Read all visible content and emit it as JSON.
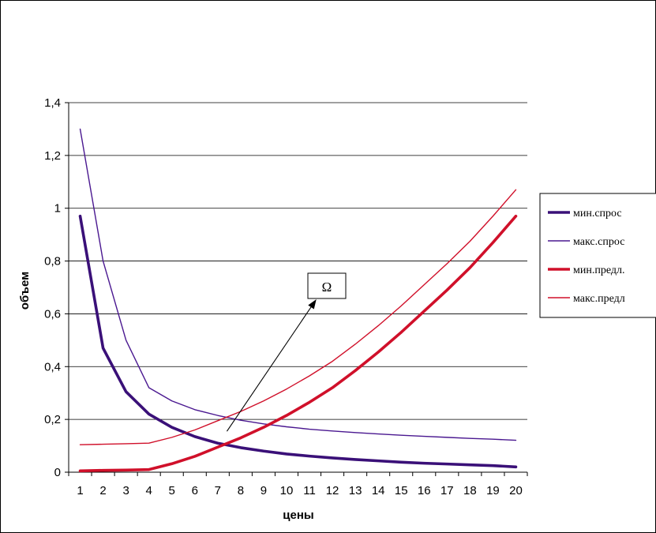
{
  "chart_data": {
    "type": "line",
    "xlabel": "цены",
    "ylabel": "объем",
    "x": [
      1,
      2,
      3,
      4,
      5,
      6,
      7,
      8,
      9,
      10,
      11,
      12,
      13,
      14,
      15,
      16,
      17,
      18,
      19,
      20
    ],
    "ylim": [
      0,
      1.4
    ],
    "yticks": [
      0,
      0.2,
      0.4,
      0.6,
      0.8,
      1,
      1.2,
      1.4
    ],
    "ytick_labels": [
      "0",
      "0,2",
      "0,4",
      "0,6",
      "0,8",
      "1",
      "1,2",
      "1,4"
    ],
    "grid": "horizontal",
    "legend_position": "right",
    "series": [
      {
        "name": "мин.спрос",
        "color": "#3a1078",
        "values": [
          0.97,
          0.47,
          0.305,
          0.22,
          0.17,
          0.135,
          0.11,
          0.093,
          0.08,
          0.069,
          0.061,
          0.054,
          0.048,
          0.043,
          0.038,
          0.034,
          0.031,
          0.028,
          0.025,
          0.02
        ]
      },
      {
        "name": "макс.спрос",
        "color": "#4a1890",
        "values": [
          1.3,
          0.8,
          0.5,
          0.32,
          0.27,
          0.237,
          0.215,
          0.197,
          0.183,
          0.172,
          0.163,
          0.156,
          0.15,
          0.145,
          0.14,
          0.136,
          0.132,
          0.128,
          0.125,
          0.121
        ]
      },
      {
        "name": "мин.предл.",
        "color": "#d0102a",
        "values": [
          0.005,
          0.007,
          0.008,
          0.01,
          0.032,
          0.06,
          0.095,
          0.13,
          0.17,
          0.215,
          0.265,
          0.32,
          0.385,
          0.455,
          0.53,
          0.61,
          0.69,
          0.775,
          0.87,
          0.97
        ]
      },
      {
        "name": "макс.предл",
        "color": "#d0102a",
        "values": [
          0.104,
          0.106,
          0.108,
          0.11,
          0.132,
          0.16,
          0.195,
          0.23,
          0.27,
          0.315,
          0.365,
          0.42,
          0.485,
          0.555,
          0.63,
          0.71,
          0.79,
          0.875,
          0.97,
          1.07
        ]
      }
    ],
    "annotation": {
      "label": "Ω",
      "from": [
        7.4,
        0.155
      ],
      "to": [
        11.3,
        0.655
      ]
    }
  }
}
